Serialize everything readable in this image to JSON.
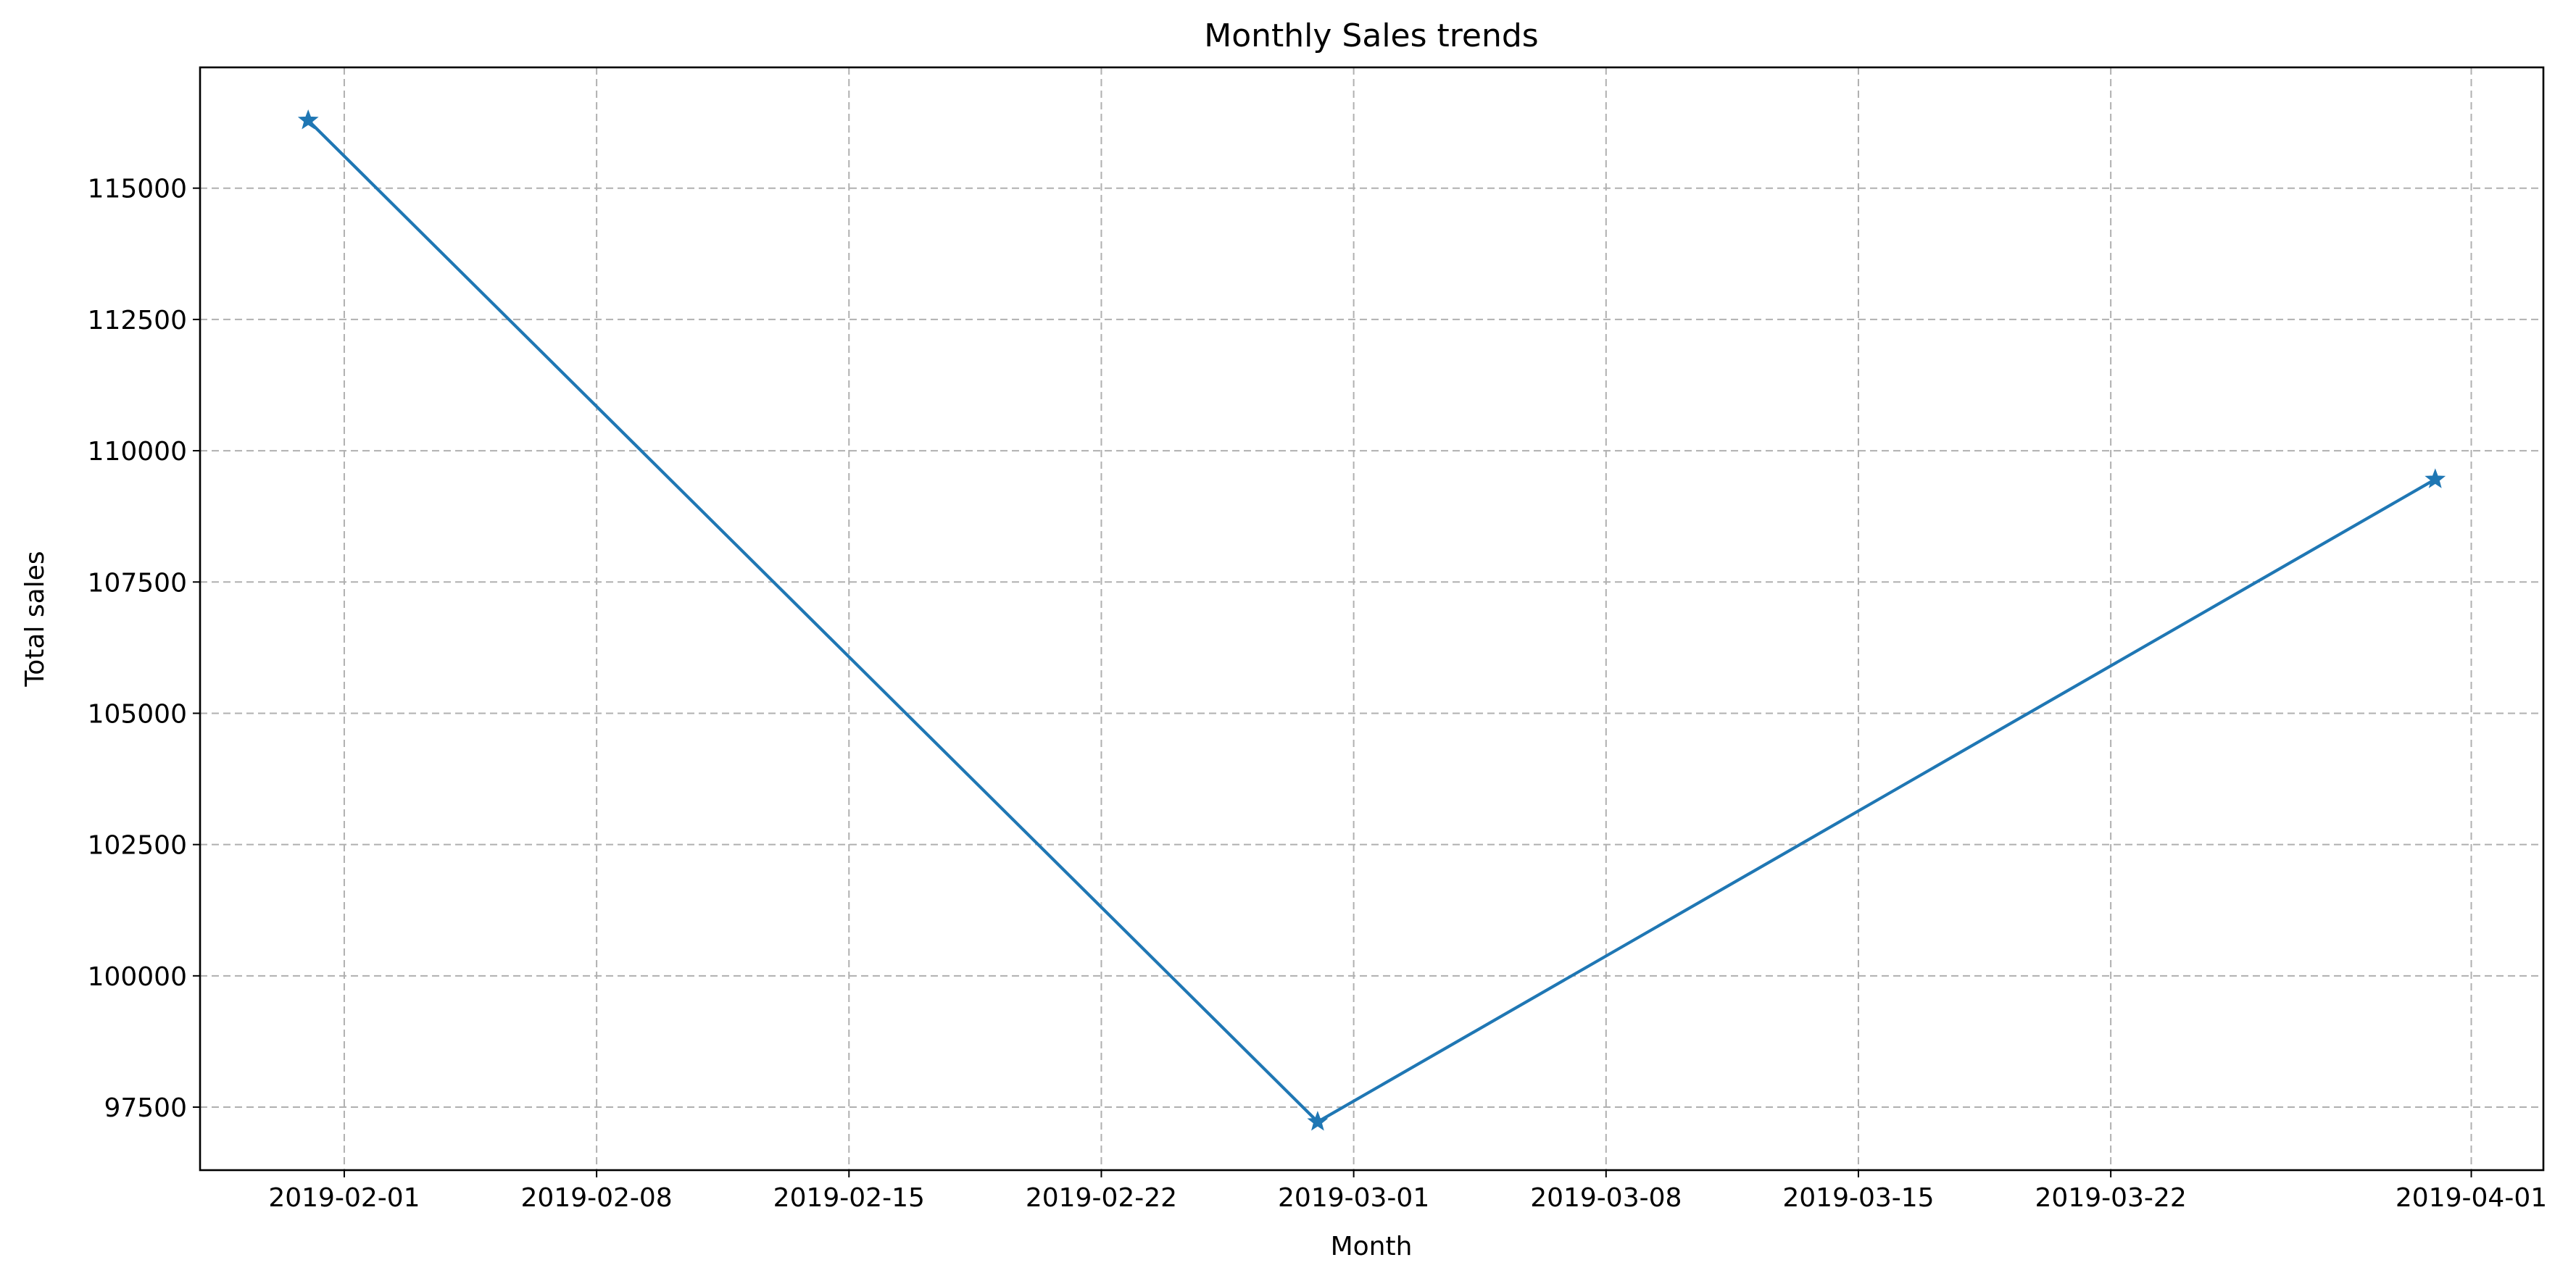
{
  "chart_data": {
    "type": "line",
    "title": "Monthly Sales trends",
    "xlabel": "Month",
    "ylabel": "Total sales",
    "x_axis_type": "date",
    "xlim": [
      "2019-01-28",
      "2019-04-03"
    ],
    "ylim": [
      96300,
      117300
    ],
    "x_ticks": [
      "2019-02-01",
      "2019-02-08",
      "2019-02-15",
      "2019-02-22",
      "2019-03-01",
      "2019-03-08",
      "2019-03-15",
      "2019-03-22",
      "2019-04-01"
    ],
    "y_ticks": [
      97500,
      100000,
      102500,
      105000,
      107500,
      110000,
      112500,
      115000
    ],
    "grid": true,
    "grid_style": "dashed",
    "marker": "star",
    "series": [
      {
        "color": "#1f77b4",
        "x": [
          "2019-01-31",
          "2019-02-28",
          "2019-03-31"
        ],
        "y": [
          116292,
          97220,
          109456
        ]
      }
    ]
  }
}
